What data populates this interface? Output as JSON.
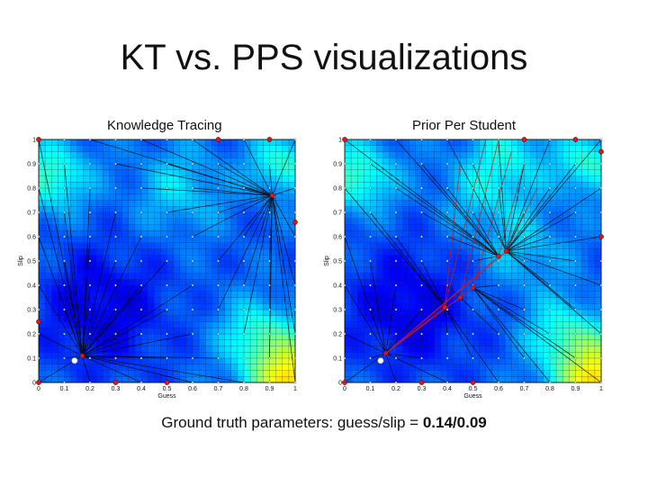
{
  "slide": {
    "title": "KT vs. PPS visualizations",
    "caption_prefix": "Ground truth parameters: guess/slip = ",
    "caption_value": "0.14/0.09"
  },
  "chart_data": [
    {
      "type": "heatmap",
      "title": "Knowledge Tracing",
      "xlabel": "Guess",
      "ylabel": "Slip",
      "xlim": [
        0,
        1
      ],
      "ylim": [
        0,
        1
      ],
      "x_ticks": [
        "0",
        "0.1",
        "0.2",
        "0.3",
        "0.4",
        "0.5",
        "0.6",
        "0.7",
        "0.8",
        "0.9",
        "1"
      ],
      "y_ticks": [
        "0",
        "0.1",
        "0.2",
        "0.3",
        "0.4",
        "0.5",
        "0.6",
        "0.7",
        "0.8",
        "0.9",
        "1"
      ],
      "grid": true,
      "ground_truth": {
        "x": 0.14,
        "y": 0.09
      },
      "attractors": [
        {
          "x": 0.17,
          "y": 0.11
        },
        {
          "x": 0.91,
          "y": 0.77
        }
      ],
      "start_points": [
        [
          0,
          1
        ],
        [
          0.3,
          0
        ],
        [
          0,
          0
        ],
        [
          1,
          0.66
        ],
        [
          0.9,
          1
        ],
        [
          0.5,
          0
        ],
        [
          0.7,
          1
        ],
        [
          0.0,
          0.25
        ]
      ],
      "colors": {
        "line": "#000000",
        "endpoint": "#d11a1a",
        "ground_truth": "#ffffff"
      }
    },
    {
      "type": "heatmap",
      "title": "Prior Per Student",
      "xlabel": "Guess",
      "ylabel": "Slip",
      "xlim": [
        0,
        1
      ],
      "ylim": [
        0,
        1
      ],
      "x_ticks": [
        "0",
        "0.1",
        "0.2",
        "0.3",
        "0.4",
        "0.5",
        "0.6",
        "0.7",
        "0.8",
        "0.9",
        "1"
      ],
      "y_ticks": [
        "0",
        "0.1",
        "0.2",
        "0.3",
        "0.4",
        "0.5",
        "0.6",
        "0.7",
        "0.8",
        "0.9",
        "1"
      ],
      "grid": true,
      "ground_truth": {
        "x": 0.14,
        "y": 0.09
      },
      "attractors": [
        {
          "x": 0.16,
          "y": 0.12
        },
        {
          "x": 0.39,
          "y": 0.31
        },
        {
          "x": 0.45,
          "y": 0.35
        },
        {
          "x": 0.5,
          "y": 0.39
        },
        {
          "x": 0.6,
          "y": 0.52
        },
        {
          "x": 0.63,
          "y": 0.54
        }
      ],
      "start_points": [
        [
          0,
          1
        ],
        [
          0.3,
          0
        ],
        [
          0,
          0
        ],
        [
          1,
          0.6
        ],
        [
          0.9,
          1
        ],
        [
          0.5,
          0
        ],
        [
          0.7,
          1
        ],
        [
          1,
          0.95
        ]
      ],
      "colors": {
        "line": "#000000",
        "endpoint": "#d11a1a",
        "ground_truth": "#ffffff"
      }
    }
  ]
}
